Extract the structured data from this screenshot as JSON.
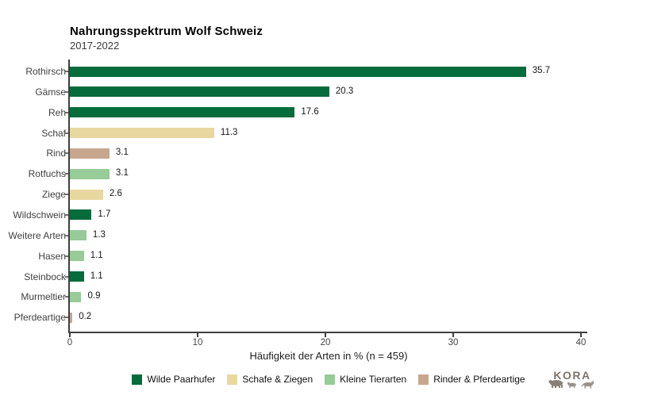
{
  "header": {
    "title": "Nahrungsspektrum Wolf Schweiz",
    "subtitle": "2017-2022"
  },
  "chart_data": {
    "type": "bar",
    "orientation": "horizontal",
    "title": "Nahrungsspektrum Wolf Schweiz",
    "subtitle": "2017-2022",
    "xlabel": "Häufigkeit der Arten in % (n = 459)",
    "ylabel": "",
    "xlim": [
      0,
      40
    ],
    "xticks": [
      0,
      10,
      20,
      30,
      40
    ],
    "grid": false,
    "value_labels_shown": true,
    "legend_position": "bottom",
    "categories": [
      "Rothirsch",
      "Gämse",
      "Reh",
      "Schaf",
      "Rind",
      "Rotfuchs",
      "Ziege",
      "Wildschwein",
      "Weitere Arten",
      "Hasen",
      "Steinbock",
      "Murmeltier",
      "Pferdeartige"
    ],
    "values": [
      35.7,
      20.3,
      17.6,
      11.3,
      3.1,
      3.1,
      2.6,
      1.7,
      1.3,
      1.1,
      1.1,
      0.9,
      0.2
    ],
    "groups": [
      "wilde_paarhufer",
      "wilde_paarhufer",
      "wilde_paarhufer",
      "schafe_ziegen",
      "rinder_pferdeartige",
      "kleine_tierarten",
      "schafe_ziegen",
      "wilde_paarhufer",
      "kleine_tierarten",
      "kleine_tierarten",
      "wilde_paarhufer",
      "kleine_tierarten",
      "rinder_pferdeartige"
    ],
    "group_colors": {
      "wilde_paarhufer": "#076c3c",
      "schafe_ziegen": "#e9d7a0",
      "kleine_tierarten": "#97cb97",
      "rinder_pferdeartige": "#c7a68e"
    },
    "legend": [
      {
        "label": "Wilde Paarhufer",
        "color": "#076c3c"
      },
      {
        "label": "Schafe & Ziegen",
        "color": "#e9d7a0"
      },
      {
        "label": "Kleine Tierarten",
        "color": "#97cb97"
      },
      {
        "label": "Rinder & Pferdeartige",
        "color": "#c7a68e"
      }
    ]
  },
  "branding": {
    "logo_text": "KORA"
  },
  "colors": {
    "axis": "#3f3f3f",
    "category_text": "#3f3f3f",
    "value_text": "#161616",
    "background": "#ffffff",
    "logo": "#7d746a"
  }
}
